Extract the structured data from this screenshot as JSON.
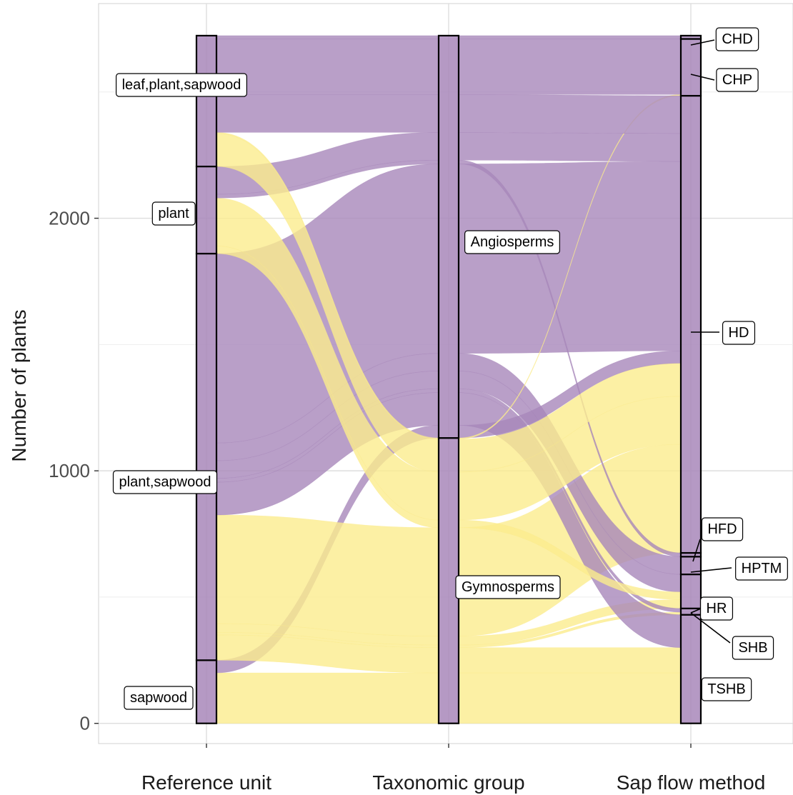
{
  "chart_data": {
    "type": "alluvial",
    "ylabel": "Number of plants",
    "ylim": [
      -80,
      2850
    ],
    "yticks": [
      0,
      1000,
      2000
    ],
    "colors": {
      "Gymnosperms": "#fbec8d",
      "Angiosperms": "#a887ba",
      "background": "#ffffff",
      "grid": "#dedede"
    },
    "axes": [
      {
        "name": "Reference unit",
        "strata": [
          {
            "label": "sapwood",
            "value": 250
          },
          {
            "label": "plant,sapwood",
            "value": 1610
          },
          {
            "label": "plant",
            "value": 345
          },
          {
            "label": "leaf,plant,sapwood",
            "value": 518
          }
        ]
      },
      {
        "name": "Taxonomic group",
        "strata": [
          {
            "label": "Gymnosperms",
            "value": 1130
          },
          {
            "label": "Angiosperms",
            "value": 1593
          }
        ]
      },
      {
        "name": "Sap flow method",
        "strata": [
          {
            "label": "TSHB",
            "value": 430
          },
          {
            "label": "SHB",
            "value": 25
          },
          {
            "label": "HR",
            "value": 135
          },
          {
            "label": "HPTM",
            "value": 70
          },
          {
            "label": "HFD",
            "value": 15
          },
          {
            "label": "HD",
            "value": 1810
          },
          {
            "label": "CHP",
            "value": 225
          },
          {
            "label": "CHD",
            "value": 13
          }
        ]
      }
    ],
    "flows": [
      {
        "ref": "sapwood",
        "method": "TSHB",
        "group": "Gymnosperms",
        "value": 200
      },
      {
        "ref": "sapwood",
        "method": "HD",
        "group": "Angiosperms",
        "value": 50
      },
      {
        "ref": "plant,sapwood",
        "method": "TSHB",
        "group": "Gymnosperms",
        "value": 100
      },
      {
        "ref": "plant,sapwood",
        "method": "HR",
        "group": "Gymnosperms",
        "value": 35
      },
      {
        "ref": "plant,sapwood",
        "method": "SHB",
        "group": "Gymnosperms",
        "value": 10
      },
      {
        "ref": "plant,sapwood",
        "method": "HD",
        "group": "Gymnosperms",
        "value": 430
      },
      {
        "ref": "plant,sapwood",
        "method": "TSHB",
        "group": "Angiosperms",
        "value": 130
      },
      {
        "ref": "plant,sapwood",
        "method": "HR",
        "group": "Angiosperms",
        "value": 70
      },
      {
        "ref": "plant,sapwood",
        "method": "SHB",
        "group": "Angiosperms",
        "value": 15
      },
      {
        "ref": "plant,sapwood",
        "method": "HPTM",
        "group": "Angiosperms",
        "value": 70
      },
      {
        "ref": "plant,sapwood",
        "method": "HD",
        "group": "Angiosperms",
        "value": 750
      },
      {
        "ref": "plant",
        "method": "HD",
        "group": "Gymnosperms",
        "value": 190
      },
      {
        "ref": "plant",
        "method": "HR",
        "group": "Gymnosperms",
        "value": 30
      },
      {
        "ref": "plant",
        "method": "HFD",
        "group": "Angiosperms",
        "value": 15
      },
      {
        "ref": "plant",
        "method": "HD",
        "group": "Angiosperms",
        "value": 110
      },
      {
        "ref": "leaf,plant,sapwood",
        "method": "HD",
        "group": "Gymnosperms",
        "value": 130
      },
      {
        "ref": "leaf,plant,sapwood",
        "method": "CHP",
        "group": "Gymnosperms",
        "value": 5
      },
      {
        "ref": "leaf,plant,sapwood",
        "method": "HD",
        "group": "Angiosperms",
        "value": 150
      },
      {
        "ref": "leaf,plant,sapwood",
        "method": "CHP",
        "group": "Angiosperms",
        "value": 220
      },
      {
        "ref": "leaf,plant,sapwood",
        "method": "CHD",
        "group": "Angiosperms",
        "value": 13
      }
    ]
  }
}
